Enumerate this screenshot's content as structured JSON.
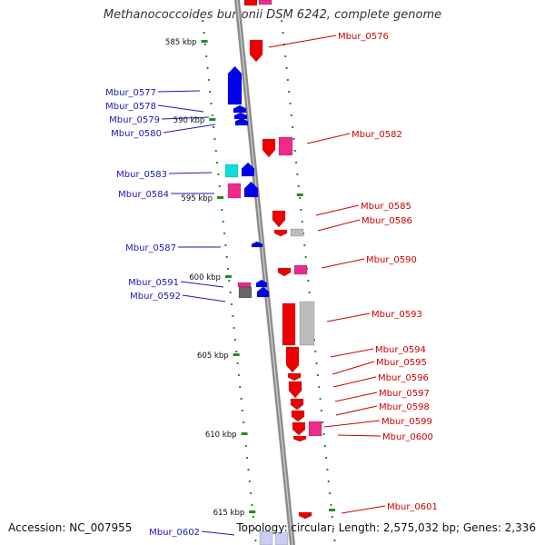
{
  "title": "Methanococcoides burtonii DSM 6242, complete genome",
  "accession": "Accession: NC_007955",
  "topology": "Topology: circular; Length: 2,575,032 bp; Genes: 2,336",
  "colors": {
    "backbone": "#8c8c8c",
    "label_left": "#1a1ab0",
    "label_right": "#cc0000",
    "tick": "#228b22",
    "red": "#ee0000",
    "blue": "#0000ee",
    "pink": "#ee2a8a",
    "cyan": "#11dddd",
    "gray": "#bdbdbd",
    "darkgray": "#666666"
  },
  "scale_labels": [
    "585 kbp",
    "590 kbp",
    "595 kbp",
    "600 kbp",
    "605 kbp",
    "610 kbp",
    "615 kbp"
  ],
  "left_genes": [
    "Mbur_0577",
    "Mbur_0578",
    "Mbur_0579",
    "Mbur_0580",
    "Mbur_0583",
    "Mbur_0584",
    "Mbur_0587",
    "Mbur_0591",
    "Mbur_0592",
    "Mbur_0602"
  ],
  "right_genes": [
    "Mbur_0576",
    "Mbur_0582",
    "Mbur_0585",
    "Mbur_0586",
    "Mbur_0590",
    "Mbur_0593",
    "Mbur_0594",
    "Mbur_0595",
    "Mbur_0596",
    "Mbur_0597",
    "Mbur_0598",
    "Mbur_0599",
    "Mbur_0600",
    "Mbur_0601"
  ]
}
